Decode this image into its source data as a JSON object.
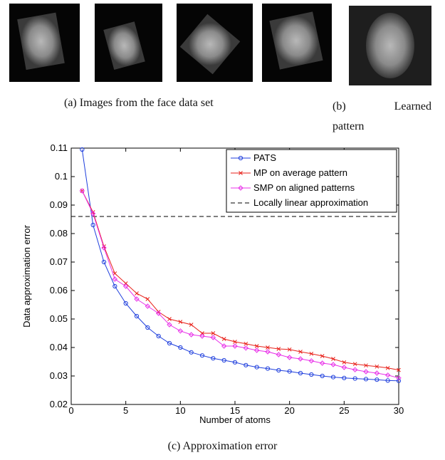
{
  "panels": [
    {
      "caption": "(a) Images from the face data set"
    },
    {
      "caption": "(b) Learned pattern"
    }
  ],
  "chart_data": {
    "type": "line",
    "caption": "(c) Approximation error",
    "xlabel": "Number of atoms",
    "ylabel": "Data approximation error",
    "xlim": [
      0,
      30
    ],
    "xticks": [
      0,
      5,
      10,
      15,
      20,
      25,
      30
    ],
    "ylim": [
      0.02,
      0.11
    ],
    "yticks": [
      0.02,
      0.03,
      0.04,
      0.05,
      0.06,
      0.07,
      0.08,
      0.09,
      0.1,
      0.11
    ],
    "legend": "top-right",
    "x": [
      1,
      2,
      3,
      4,
      5,
      6,
      7,
      8,
      9,
      10,
      11,
      12,
      13,
      14,
      15,
      16,
      17,
      18,
      19,
      20,
      21,
      22,
      23,
      24,
      25,
      26,
      27,
      28,
      29,
      30
    ],
    "series": [
      {
        "name": "PATS",
        "color": "#1f3fdd",
        "marker": "circle",
        "values": [
          0.1095,
          0.083,
          0.07,
          0.0615,
          0.0555,
          0.051,
          0.047,
          0.044,
          0.0415,
          0.04,
          0.0383,
          0.0372,
          0.0362,
          0.0355,
          0.0348,
          0.0338,
          0.0331,
          0.0326,
          0.032,
          0.0316,
          0.031,
          0.0305,
          0.03,
          0.0296,
          0.0293,
          0.0291,
          0.0289,
          0.0287,
          0.0284,
          0.0283
        ]
      },
      {
        "name": "MP on average pattern",
        "color": "#e8211a",
        "marker": "x",
        "values": [
          0.095,
          0.0875,
          0.0755,
          0.066,
          0.0625,
          0.059,
          0.057,
          0.0525,
          0.05,
          0.049,
          0.048,
          0.045,
          0.045,
          0.043,
          0.042,
          0.0413,
          0.0405,
          0.04,
          0.0395,
          0.0393,
          0.0385,
          0.0378,
          0.037,
          0.036,
          0.0348,
          0.0342,
          0.0337,
          0.0333,
          0.0328,
          0.0321
        ]
      },
      {
        "name": "SMP on aligned patterns",
        "color": "#e830e8",
        "marker": "diamond",
        "values": [
          0.095,
          0.087,
          0.075,
          0.064,
          0.0615,
          0.057,
          0.0545,
          0.052,
          0.048,
          0.0458,
          0.0445,
          0.044,
          0.0435,
          0.0405,
          0.0405,
          0.0398,
          0.039,
          0.0385,
          0.0375,
          0.0365,
          0.036,
          0.0353,
          0.0345,
          0.034,
          0.033,
          0.0322,
          0.0315,
          0.031,
          0.0303,
          0.0293
        ]
      }
    ],
    "hlines": [
      {
        "name": "Locally linear approximation",
        "value": 0.086,
        "color": "#000000",
        "dashed": true
      }
    ]
  }
}
